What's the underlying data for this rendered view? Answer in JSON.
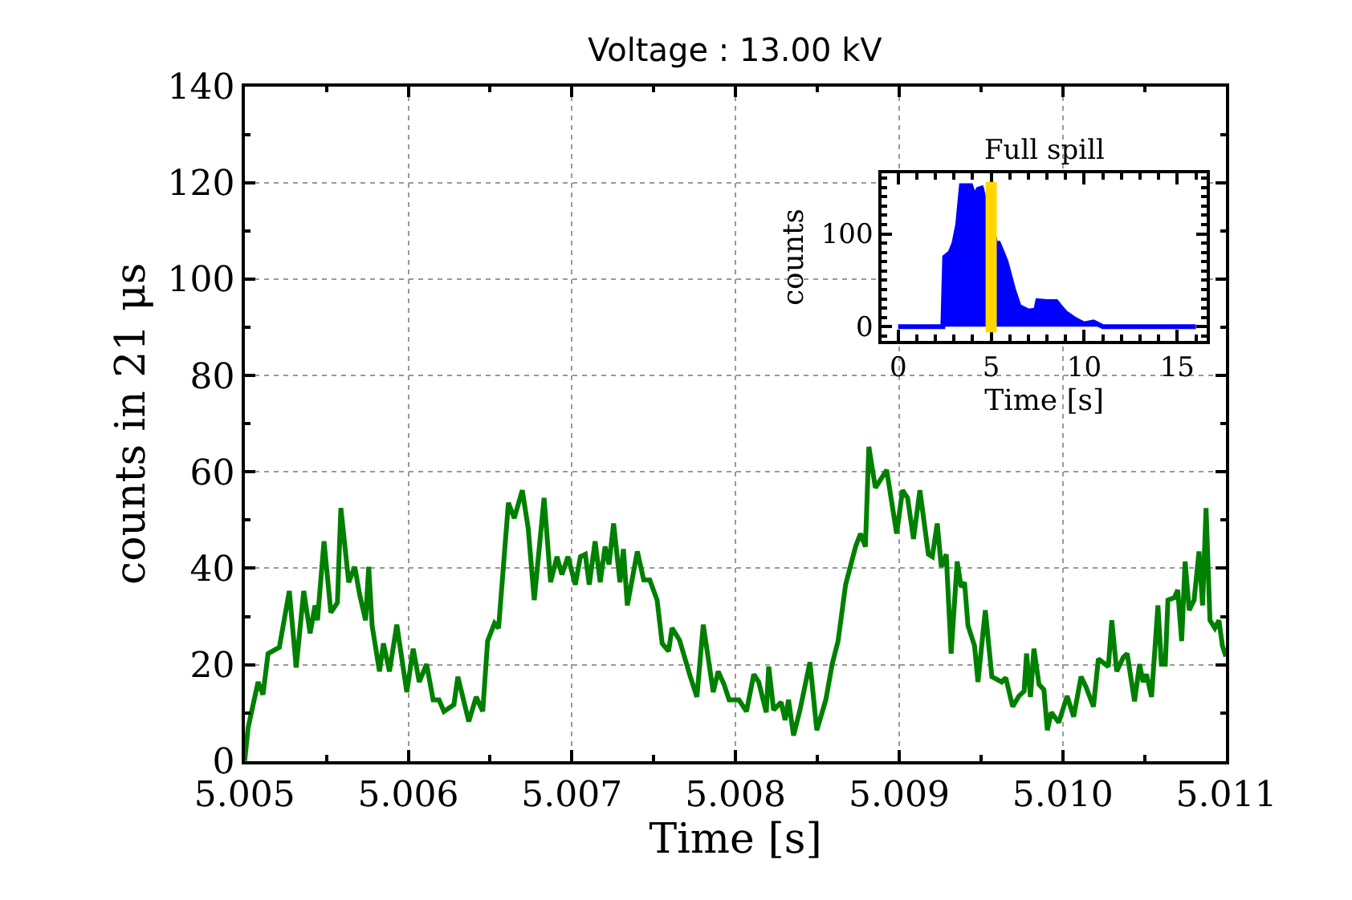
{
  "chart_data": [
    {
      "type": "line",
      "title": "Voltage : 13.00 kV",
      "xlabel": "Time [s]",
      "ylabel": "counts in 21 μs",
      "color": "#008000",
      "xlim": [
        5.005,
        5.011
      ],
      "ylim": [
        0,
        140
      ],
      "xticks": [
        5.005,
        5.006,
        5.007,
        5.008,
        5.009,
        {
          "value": 5.01,
          "label": "5.010"
        },
        5.011
      ],
      "yticks": [
        0,
        20,
        40,
        60,
        80,
        100,
        120,
        140
      ],
      "grid": true,
      "marker": "none",
      "line_style": "solid",
      "x": [
        5.005,
        5.005021,
        5.005082,
        5.005112,
        5.005143,
        5.005212,
        5.005273,
        5.005315,
        5.005361,
        5.0054,
        5.00543,
        5.005445,
        5.005485,
        5.005527,
        5.005567,
        5.005588,
        5.005636,
        5.005673,
        5.005703,
        5.005739,
        5.005758,
        5.005779,
        5.005824,
        5.005848,
        5.005885,
        5.00593,
        5.005991,
        5.00603,
        5.006067,
        5.006112,
        5.006152,
        5.006188,
        5.006218,
        5.006279,
        5.006303,
        5.00637,
        5.006415,
        5.006455,
        5.006485,
        5.006527,
        5.006552,
        5.006612,
        5.006648,
        5.006697,
        5.006733,
        5.00677,
        5.00683,
        5.00687,
        5.006909,
        5.006939,
        5.006976,
        5.007021,
        5.007052,
        5.007082,
        5.007106,
        5.007142,
        5.007173,
        5.007203,
        5.007227,
        5.007255,
        5.007294,
        5.007315,
        5.007339,
        5.0074,
        5.007439,
        5.007476,
        5.007521,
        5.007552,
        5.007591,
        5.007612,
        5.007658,
        5.007724,
        5.007764,
        5.007803,
        5.007864,
        5.007894,
        5.00793,
        5.007961,
        5.008021,
        5.008067,
        5.008112,
        5.008142,
        5.008188,
        5.008203,
        5.008233,
        5.008279,
        5.008303,
        5.008324,
        5.008355,
        5.008394,
        5.008455,
        5.008497,
        5.008552,
        5.008591,
        5.008627,
        5.008673,
        5.008734,
        5.008764,
        5.008794,
        5.008815,
        5.008855,
        5.008924,
        5.008985,
        5.009021,
        5.009052,
        5.009088,
        5.009127,
        5.009179,
        5.009203,
        5.009233,
        5.009258,
        5.009288,
        5.009318,
        5.009355,
        5.009379,
        5.0094,
        5.009421,
        5.009461,
        5.009482,
        5.009527,
        5.009567,
        5.009627,
        5.009652,
        5.009694,
        5.009733,
        5.009764,
        5.009779,
        5.009803,
        5.009824,
        5.009855,
        5.009885,
        5.009906,
        5.00993,
        5.009976,
        5.010027,
        5.010067,
        5.010112,
        5.010142,
        5.010188,
        5.010218,
        5.010279,
        5.0103,
        5.01033,
        5.01037,
        5.010394,
        5.010439,
        5.01047,
        5.010491,
        5.010512,
        5.010543,
        5.010582,
        5.010603,
        5.010627,
        5.010643,
        5.010682,
        5.010703,
        5.010727,
        5.010748,
        5.010773,
        5.010803,
        5.010833,
        5.010855,
        5.010876,
        5.0109,
        5.01093,
        5.010955,
        5.010976,
        5.010997
      ],
      "values": [
        0,
        6.9,
        16.4,
        13.8,
        22.3,
        23.6,
        35.3,
        19.4,
        35.3,
        26.5,
        32.3,
        29.2,
        45.6,
        30.8,
        32.9,
        52.5,
        37.1,
        40.3,
        34.5,
        29.2,
        40.3,
        28.1,
        18.6,
        24.4,
        18.6,
        28.3,
        14.3,
        23.3,
        16.4,
        20.1,
        12.7,
        12.7,
        10.3,
        11.7,
        17.5,
        8.2,
        13.3,
        10.3,
        24.9,
        28.6,
        27.6,
        53.6,
        50.4,
        56.2,
        48.3,
        33.4,
        54.6,
        37.1,
        42.4,
        38.7,
        42.4,
        36.6,
        42.4,
        42.9,
        36.6,
        45.6,
        37.1,
        44.5,
        40.8,
        49.3,
        37.1,
        44,
        32.3,
        43.5,
        37.6,
        37.6,
        33.4,
        24.4,
        22.8,
        27.6,
        25.1,
        17.5,
        13.3,
        28.3,
        14.3,
        18.6,
        15.9,
        12.7,
        12.7,
        10.3,
        18,
        16.4,
        10.1,
        19.6,
        10.6,
        12.2,
        8.5,
        12.7,
        5.3,
        10.6,
        20.5,
        6.4,
        12.7,
        20.1,
        24.9,
        36.6,
        44.5,
        47.2,
        44.5,
        65.2,
        56.7,
        60.4,
        47.2,
        56.2,
        54.6,
        46.1,
        56.2,
        42.9,
        42.4,
        49.3,
        40.3,
        42.9,
        22.3,
        41.4,
        36.1,
        37.1,
        28.1,
        23.9,
        16.4,
        31.3,
        17.5,
        16.4,
        17.3,
        11.3,
        13.5,
        14.5,
        22.3,
        13.3,
        23.3,
        15.9,
        14.8,
        6.4,
        10.1,
        8,
        13.5,
        9.2,
        17.5,
        15.4,
        11.3,
        21.2,
        19.6,
        29.2,
        18.6,
        21.5,
        22.3,
        12.4,
        20.1,
        16.4,
        18,
        13.3,
        32.3,
        20.1,
        20.1,
        33.4,
        33.9,
        35.5,
        24.9,
        41.4,
        31.3,
        33.4,
        43.5,
        32.3,
        52.5,
        29.2,
        27.6,
        29.2,
        23.9,
        21.7
      ]
    },
    {
      "type": "area",
      "title": "Full spill",
      "xlabel": "Time [s]",
      "ylabel": "counts",
      "color": "#0000ff",
      "xlim": [
        -0.9,
        16.6
      ],
      "ylim": [
        -15,
        165
      ],
      "xticks": [
        0,
        5,
        10,
        15
      ],
      "yticks": [
        0,
        100
      ],
      "grid": false,
      "bands": [
        {
          "axis": "x",
          "from": 4.7,
          "to": 5.3,
          "color": "#ffd700"
        }
      ],
      "x": [
        0,
        2.4,
        2.5,
        2.8,
        3.0,
        3.2,
        3.4,
        3.9,
        4.1,
        4.3,
        4.6,
        5.0,
        5.35,
        5.6,
        5.8,
        6.0,
        6.2,
        6.5,
        7.0,
        7.4,
        7.5,
        8.0,
        8.5,
        8.7,
        9.0,
        9.5,
        10.0,
        10.5,
        11.0,
        16.0
      ],
      "values": [
        0,
        0,
        75,
        80,
        90,
        110,
        152,
        152,
        140,
        148,
        150,
        null,
        92,
        80,
        70,
        55,
        40,
        22,
        17,
        18,
        28,
        27,
        27,
        22,
        15,
        8,
        3,
        5,
        0,
        0
      ]
    }
  ]
}
